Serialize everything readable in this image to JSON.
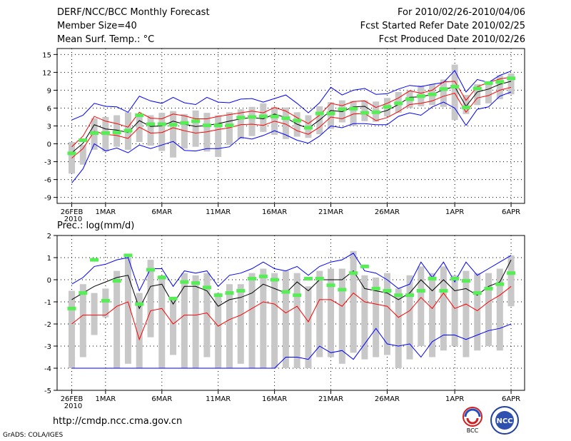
{
  "header": {
    "title": "DERF/NCC/BCC Monthly Forecast",
    "member": "Member Size=40",
    "variable": "Mean Surf. Temp.: °C",
    "period": "For 2010/02/26-2010/04/06",
    "started": "Fcst Started Refer Date 2010/02/25",
    "produced": "Fcst Produced Date 2010/02/26"
  },
  "precip_label": "Prec.: log(mm/d)",
  "footer": {
    "url": "http://cmdp.ncc.cma.gov.cn",
    "credit": "GrADS: COLA/IGES",
    "logo_left": "BCC",
    "logo_right": "NCC"
  },
  "colors": {
    "envelope": "#0000ff",
    "spread": "#ff0000",
    "mean": "#000000",
    "box": "#c8c8c8",
    "obs": "#55ee55"
  },
  "chart_data": [
    {
      "type": "line",
      "title": "Mean Surf. Temp.: °C",
      "ylim": [
        -10,
        16
      ],
      "yticks": [
        15,
        12,
        9,
        6,
        3,
        0,
        -3,
        -6,
        -9
      ],
      "xticks": [
        {
          "label": "26FEB",
          "day": 0,
          "sub": "2010"
        },
        {
          "label": "1MAR",
          "day": 3
        },
        {
          "label": "6MAR",
          "day": 8
        },
        {
          "label": "11MAR",
          "day": 13
        },
        {
          "label": "16MAR",
          "day": 18
        },
        {
          "label": "21MAR",
          "day": 23
        },
        {
          "label": "26MAR",
          "day": 28
        },
        {
          "label": "1APR",
          "day": 34
        },
        {
          "label": "6APR",
          "day": 39
        }
      ],
      "series": [
        {
          "name": "max",
          "values": [
            4,
            4.8,
            6.8,
            6.3,
            6.2,
            5.3,
            8,
            7.2,
            6.8,
            7.8,
            6.9,
            6.6,
            7.8,
            7,
            6.9,
            7.5,
            7.6,
            7,
            7.6,
            8.2,
            6.8,
            5.2,
            6.9,
            9.5,
            8.2,
            9,
            9.3,
            8.3,
            8.4,
            9.2,
            9.8,
            9.6,
            10,
            10.3,
            12.3,
            8.7,
            10.8,
            10.3,
            11.5,
            12.2
          ]
        },
        {
          "name": "upper",
          "values": [
            -0.5,
            1.3,
            4.6,
            3.8,
            3.4,
            2.8,
            5.3,
            4.3,
            4.2,
            5,
            4.7,
            4.2,
            4.2,
            4.6,
            4.9,
            5.2,
            5.5,
            5.2,
            6.1,
            5.5,
            4.4,
            3.4,
            4.8,
            6.8,
            6.4,
            7.1,
            7.2,
            6.1,
            6.8,
            7.7,
            8.9,
            8.5,
            9,
            10.4,
            10.5,
            7.3,
            9.6,
            10.3,
            10.9,
            11.2
          ]
        },
        {
          "name": "mean",
          "values": [
            -1.5,
            0.1,
            3.2,
            2.5,
            2.3,
            1.9,
            3.9,
            2.9,
            3,
            3.8,
            3.3,
            2.9,
            3.1,
            3.4,
            3.8,
            4.2,
            4.4,
            4.2,
            5,
            4.4,
            3.3,
            2.6,
            4,
            5.6,
            5.4,
            6.2,
            6.3,
            5.1,
            5.6,
            6.6,
            7.8,
            7.9,
            8.3,
            9.1,
            9.6,
            6.3,
            8.7,
            9.2,
            10,
            10.5
          ]
        },
        {
          "name": "lower",
          "values": [
            -2.4,
            -0.8,
            2.1,
            1.6,
            1.4,
            0.9,
            2.8,
            1.8,
            1.9,
            2.7,
            2.2,
            1.8,
            2,
            2.4,
            2.7,
            3.2,
            3.3,
            3.1,
            3.8,
            3.3,
            2.2,
            1.6,
            2.8,
            4.5,
            4.2,
            5,
            5.1,
            3.9,
            4.4,
            5.4,
            6.6,
            6.8,
            7.2,
            8,
            8.5,
            5.3,
            7.7,
            8.1,
            9,
            9.5
          ]
        },
        {
          "name": "min",
          "values": [
            -6.6,
            -4.2,
            0,
            -1.2,
            -0.7,
            -1.5,
            -0.2,
            -0.8,
            -0.2,
            0.4,
            -1.1,
            -1.2,
            -0.8,
            -0.8,
            -0.5,
            1.1,
            0.8,
            1.4,
            2.2,
            1.5,
            0.6,
            0.1,
            1.3,
            3,
            2.7,
            3.4,
            3.4,
            3.2,
            3.2,
            4.6,
            5.2,
            4.8,
            6.2,
            7,
            6,
            3.1,
            5.8,
            6.2,
            8,
            8.7
          ]
        }
      ],
      "boxes": [
        {
          "x": 0,
          "lo": -5,
          "hi": 0.3
        },
        {
          "x": 1,
          "lo": -3.5,
          "hi": -0.2
        },
        {
          "x": 2,
          "lo": -1,
          "hi": 4.3
        },
        {
          "x": 3,
          "lo": -1.3,
          "hi": 4.5
        },
        {
          "x": 4,
          "lo": -0.5,
          "hi": 4.8
        },
        {
          "x": 5,
          "lo": -1,
          "hi": 5.3
        },
        {
          "x": 6,
          "lo": 0.3,
          "hi": 5
        },
        {
          "x": 7,
          "lo": -0.3,
          "hi": 4.8
        },
        {
          "x": 8,
          "lo": -1.2,
          "hi": 5.2
        },
        {
          "x": 9,
          "lo": -2.3,
          "hi": 5.5
        },
        {
          "x": 10,
          "lo": -0.8,
          "hi": 5
        },
        {
          "x": 11,
          "lo": -0.5,
          "hi": 5.6
        },
        {
          "x": 12,
          "lo": -1.3,
          "hi": 5.2
        },
        {
          "x": 13,
          "lo": -2.2,
          "hi": 4.8
        },
        {
          "x": 14,
          "lo": -0.2,
          "hi": 5.3
        },
        {
          "x": 15,
          "lo": 0.8,
          "hi": 5.8
        },
        {
          "x": 16,
          "lo": 1.3,
          "hi": 6.2
        },
        {
          "x": 17,
          "lo": 2,
          "hi": 6.8
        },
        {
          "x": 18,
          "lo": 1.5,
          "hi": 6.2
        },
        {
          "x": 19,
          "lo": 0.8,
          "hi": 6.1
        },
        {
          "x": 20,
          "lo": 1.2,
          "hi": 5.3
        },
        {
          "x": 21,
          "lo": 1,
          "hi": 4.8
        },
        {
          "x": 22,
          "lo": 1.6,
          "hi": 6.3
        },
        {
          "x": 23,
          "lo": 2.5,
          "hi": 7
        },
        {
          "x": 24,
          "lo": 3.6,
          "hi": 7.3
        },
        {
          "x": 25,
          "lo": 3,
          "hi": 7.2
        },
        {
          "x": 26,
          "lo": 3.8,
          "hi": 7.3
        },
        {
          "x": 27,
          "lo": 3.7,
          "hi": 7.1
        },
        {
          "x": 28,
          "lo": 4.6,
          "hi": 7.7
        },
        {
          "x": 29,
          "lo": 5.2,
          "hi": 8.7
        },
        {
          "x": 30,
          "lo": 6,
          "hi": 9
        },
        {
          "x": 31,
          "lo": 6.3,
          "hi": 9.8
        },
        {
          "x": 32,
          "lo": 6.5,
          "hi": 10
        },
        {
          "x": 33,
          "lo": 6.2,
          "hi": 10.8
        },
        {
          "x": 34,
          "lo": 4,
          "hi": 13.3
        },
        {
          "x": 35,
          "lo": 5,
          "hi": 8.2
        },
        {
          "x": 36,
          "lo": 6.5,
          "hi": 10
        },
        {
          "x": 37,
          "lo": 6.8,
          "hi": 10.5
        },
        {
          "x": 38,
          "lo": 7.5,
          "hi": 11.5
        },
        {
          "x": 39,
          "lo": 8.3,
          "hi": 11.8
        }
      ],
      "observed": [
        -1.6,
        0.6,
        1.8,
        1.8,
        1.9,
        2.2,
        4.8,
        3.3,
        3.3,
        3.2,
        3.5,
        3.8,
        3.1,
        3.1,
        3.1,
        4.4,
        4.5,
        4.6,
        4.6,
        4.3,
        3.9,
        2.7,
        5.1,
        5.1,
        5.8,
        5.9,
        5.2,
        5.3,
        6.2,
        6.8,
        7.5,
        8,
        8.3,
        9.2,
        9.6,
        6.1,
        9.3,
        10.2,
        10.4,
        11
      ]
    },
    {
      "type": "line",
      "title": "Prec.: log(mm/d)",
      "ylim": [
        -5,
        2
      ],
      "yticks": [
        2,
        1,
        0,
        -1,
        -2,
        -3,
        -4,
        -5
      ],
      "xticks": [
        {
          "label": "26FEB",
          "day": 0,
          "sub": "2010"
        },
        {
          "label": "1MAR",
          "day": 3
        },
        {
          "label": "6MAR",
          "day": 8
        },
        {
          "label": "11MAR",
          "day": 13
        },
        {
          "label": "16MAR",
          "day": 18
        },
        {
          "label": "21MAR",
          "day": 23
        },
        {
          "label": "26MAR",
          "day": 28
        },
        {
          "label": "1APR",
          "day": 34
        },
        {
          "label": "6APR",
          "day": 39
        }
      ],
      "series": [
        {
          "name": "max",
          "values": [
            -0.2,
            0.1,
            0.6,
            0.7,
            0.9,
            1.0,
            -0.5,
            0.5,
            0.5,
            -0.3,
            0.4,
            0.3,
            0.4,
            -0.3,
            0.2,
            0.3,
            0.5,
            0.8,
            0.5,
            0.4,
            0.6,
            0.2,
            0.6,
            0.8,
            0.9,
            1.2,
            0.4,
            0.3,
            0,
            -0.4,
            -0.2,
            0.8,
            0.1,
            0.8,
            -0.1,
            0.8,
            0.2,
            0.5,
            0.8,
            1.1
          ]
        },
        {
          "name": "mean",
          "values": [
            -0.9,
            -0.6,
            -0.3,
            -0.1,
            0.1,
            0.2,
            -1.3,
            -0.3,
            -0.2,
            -1.1,
            -0.3,
            -0.3,
            -0.5,
            -1.2,
            -0.9,
            -0.8,
            -0.6,
            -0.2,
            -0.4,
            -0.6,
            -0.1,
            -0.5,
            0,
            0,
            0,
            0.4,
            -0.4,
            -0.5,
            -0.6,
            -0.9,
            -0.6,
            0,
            -0.5,
            0,
            -0.5,
            -0.4,
            -0.7,
            -0.3,
            -0.1,
            0.9
          ]
        },
        {
          "name": "lower",
          "values": [
            -2.0,
            -1.6,
            -1.6,
            -1.6,
            -1.2,
            -1.0,
            -2.7,
            -1.4,
            -1.3,
            -2.0,
            -1.6,
            -1.6,
            -1.5,
            -2.1,
            -1.8,
            -1.6,
            -1.3,
            -1.0,
            -1.1,
            -1.5,
            -1.2,
            -1.9,
            -0.9,
            -0.9,
            -1.2,
            -0.6,
            -1.0,
            -1.1,
            -1.2,
            -1.7,
            -1.4,
            -0.8,
            -1.3,
            -0.6,
            -1.3,
            -1.1,
            -1.4,
            -1.0,
            -0.7,
            -0.3
          ]
        },
        {
          "name": "min",
          "values": [
            -4,
            -4,
            -4,
            -4,
            -4,
            -4,
            -4,
            -4,
            -4,
            -4,
            -4,
            -4,
            -4,
            -4,
            -4,
            -4,
            -4,
            -4,
            -4,
            -3.5,
            -3.5,
            -3.6,
            -3.0,
            -3.3,
            -3.2,
            -3.6,
            -2.9,
            -2.2,
            -2.9,
            -3.0,
            -2.9,
            -3.5,
            -2.8,
            -2.5,
            -2.5,
            -2.7,
            -2.5,
            -2.3,
            -2.2,
            -2.0
          ]
        }
      ],
      "boxes": [
        {
          "x": 0,
          "lo": -4,
          "hi": -0.5
        },
        {
          "x": 1,
          "lo": -3.5,
          "hi": -0.2
        },
        {
          "x": 2,
          "lo": -2.5,
          "hi": -0.6
        },
        {
          "x": 3,
          "lo": -1.7,
          "hi": -0.4
        },
        {
          "x": 4,
          "lo": -4,
          "hi": 0.4
        },
        {
          "x": 5,
          "lo": -3.8,
          "hi": 1.0
        },
        {
          "x": 6,
          "lo": -4,
          "hi": -0.6
        },
        {
          "x": 7,
          "lo": -2.6,
          "hi": 0.9
        },
        {
          "x": 8,
          "lo": -4,
          "hi": 0.2
        },
        {
          "x": 9,
          "lo": -3.4,
          "hi": -0.8
        },
        {
          "x": 10,
          "lo": -4,
          "hi": 0.3
        },
        {
          "x": 11,
          "lo": -4,
          "hi": 0.2
        },
        {
          "x": 12,
          "lo": -3.5,
          "hi": 0.3
        },
        {
          "x": 13,
          "lo": -4,
          "hi": -0.6
        },
        {
          "x": 14,
          "lo": -4,
          "hi": -0.2
        },
        {
          "x": 15,
          "lo": -3.8,
          "hi": -0.2
        },
        {
          "x": 16,
          "lo": -4,
          "hi": 0.3
        },
        {
          "x": 17,
          "lo": -4,
          "hi": 0.5
        },
        {
          "x": 18,
          "lo": -4,
          "hi": 0.3
        },
        {
          "x": 19,
          "lo": -4,
          "hi": 0.4
        },
        {
          "x": 20,
          "lo": -4,
          "hi": 0.3
        },
        {
          "x": 21,
          "lo": -4,
          "hi": -0.3
        },
        {
          "x": 22,
          "lo": -3.5,
          "hi": 0.4
        },
        {
          "x": 23,
          "lo": -3.5,
          "hi": 0.5
        },
        {
          "x": 24,
          "lo": -3.8,
          "hi": 0.5
        },
        {
          "x": 25,
          "lo": -3.3,
          "hi": 1.3
        },
        {
          "x": 26,
          "lo": -3.6,
          "hi": 0.2
        },
        {
          "x": 27,
          "lo": -3.5,
          "hi": 0.1
        },
        {
          "x": 28,
          "lo": -3.4,
          "hi": 0.3
        },
        {
          "x": 29,
          "lo": -4,
          "hi": -0.4
        },
        {
          "x": 30,
          "lo": -3.6,
          "hi": 0.2
        },
        {
          "x": 31,
          "lo": -3.0,
          "hi": 0.6
        },
        {
          "x": 32,
          "lo": -3.5,
          "hi": 0.3
        },
        {
          "x": 33,
          "lo": -3.2,
          "hi": 0.6
        },
        {
          "x": 34,
          "lo": -3.0,
          "hi": 0.2
        },
        {
          "x": 35,
          "lo": -3.5,
          "hi": 0.4
        },
        {
          "x": 36,
          "lo": -3.2,
          "hi": 0.3
        },
        {
          "x": 37,
          "lo": -3.0,
          "hi": 0.3
        },
        {
          "x": 38,
          "lo": -3.2,
          "hi": 0.5
        },
        {
          "x": 39,
          "lo": -1.2,
          "hi": 1.1
        }
      ],
      "observed": [
        -1.3,
        -0.6,
        0.9,
        -0.95,
        -0.05,
        1.1,
        -1.1,
        0.45,
        0.1,
        -0.85,
        -0.1,
        -0.15,
        -0.35,
        -0.7,
        -0.6,
        -0.5,
        0.05,
        0.15,
        0.0,
        -0.55,
        -0.7,
        0.05,
        0.05,
        -0.25,
        -0.45,
        0.3,
        0.6,
        -0.4,
        -0.5,
        -0.7,
        -0.7,
        -0.5,
        0.05,
        -0.5,
        0.05,
        -0.05,
        -0.6,
        -0.4,
        -0.2,
        0.3
      ]
    }
  ]
}
